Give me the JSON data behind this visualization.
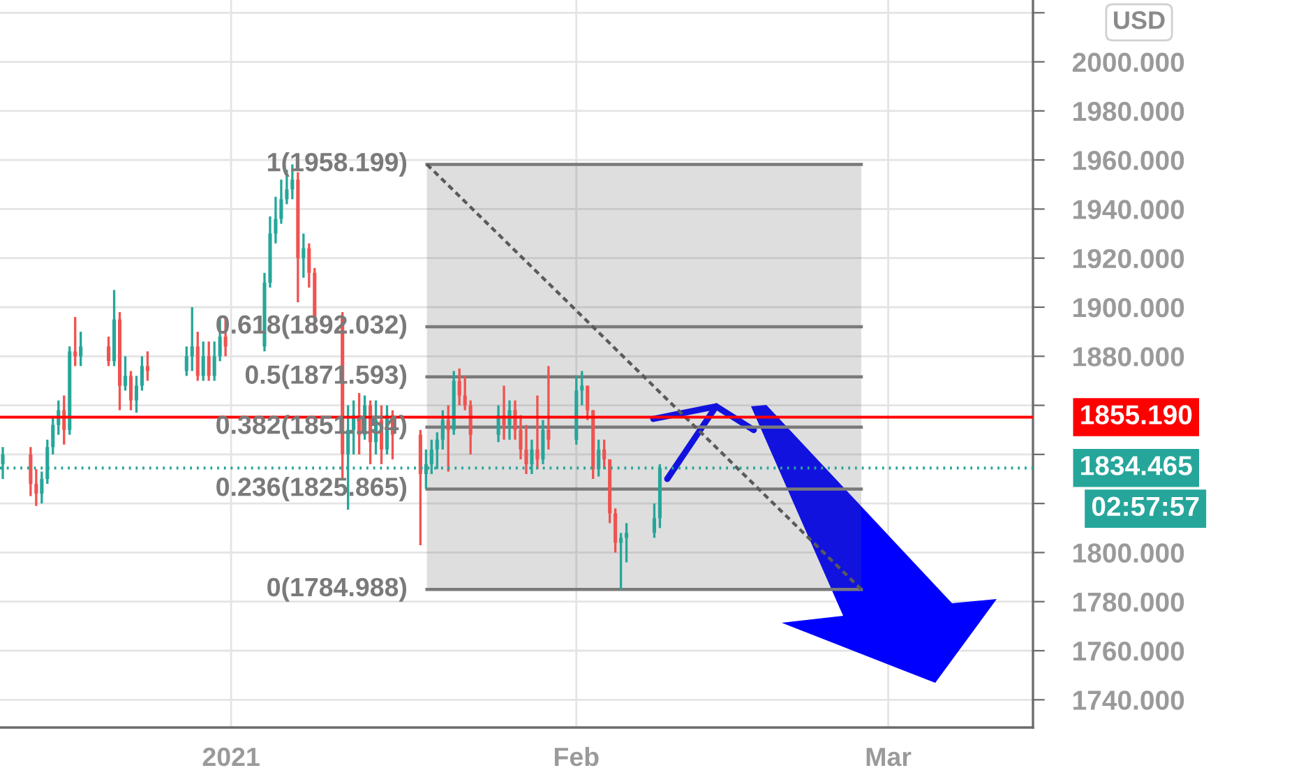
{
  "chart_data": {
    "type": "candlestick",
    "x": [
      "2020-12-11T12:00",
      "2020-12-14T00:00",
      "2020-12-14T12:00",
      "2020-12-15T00:00",
      "2020-12-15T12:00",
      "2020-12-16T00:00",
      "2020-12-16T12:00",
      "2020-12-17T00:00",
      "2020-12-17T12:00",
      "2020-12-18T00:00",
      "2020-12-18T12:00",
      "2020-12-21T00:00",
      "2020-12-21T12:00",
      "2020-12-22T00:00",
      "2020-12-22T12:00",
      "2020-12-23T00:00",
      "2020-12-23T12:00",
      "2020-12-24T00:00",
      "2020-12-24T12:00",
      "2020-12-28T00:00",
      "2020-12-28T12:00",
      "2020-12-29T00:00",
      "2020-12-29T12:00",
      "2020-12-30T00:00",
      "2020-12-30T12:00",
      "2020-12-31T00:00",
      "2020-12-31T12:00",
      "2021-01-04T00:00",
      "2021-01-04T12:00",
      "2021-01-05T00:00",
      "2021-01-05T12:00",
      "2021-01-06T00:00",
      "2021-01-06T12:00",
      "2021-01-07T00:00",
      "2021-01-07T12:00",
      "2021-01-08T00:00",
      "2021-01-08T12:00",
      "2021-01-11T00:00",
      "2021-01-11T12:00",
      "2021-01-12T00:00",
      "2021-01-12T12:00",
      "2021-01-13T00:00",
      "2021-01-13T12:00",
      "2021-01-14T00:00",
      "2021-01-14T12:00",
      "2021-01-15T00:00",
      "2021-01-15T12:00",
      "2021-01-18T00:00",
      "2021-01-18T12:00",
      "2021-01-19T00:00",
      "2021-01-19T12:00",
      "2021-01-20T00:00",
      "2021-01-20T12:00",
      "2021-01-21T00:00",
      "2021-01-21T12:00",
      "2021-01-22T00:00",
      "2021-01-22T12:00",
      "2021-01-25T00:00",
      "2021-01-25T12:00",
      "2021-01-26T00:00",
      "2021-01-26T12:00",
      "2021-01-27T00:00",
      "2021-01-27T12:00",
      "2021-01-28T00:00",
      "2021-01-28T12:00",
      "2021-01-29T00:00",
      "2021-01-29T12:00",
      "2021-02-01T00:00",
      "2021-02-01T12:00",
      "2021-02-02T00:00",
      "2021-02-02T12:00",
      "2021-02-03T00:00",
      "2021-02-03T12:00",
      "2021-02-04T00:00",
      "2021-02-04T12:00",
      "2021-02-05T00:00",
      "2021-02-05T12:00",
      "2021-02-08T00:00",
      "2021-02-08T12:00"
    ],
    "ohlc": [
      [
        1836,
        1843,
        1830,
        1840
      ],
      [
        1840,
        1843,
        1823,
        1828
      ],
      [
        1828,
        1834,
        1819,
        1824
      ],
      [
        1824,
        1833,
        1820,
        1830
      ],
      [
        1830,
        1846,
        1828,
        1843
      ],
      [
        1843,
        1855,
        1840,
        1852
      ],
      [
        1852,
        1862,
        1848,
        1858
      ],
      [
        1858,
        1864,
        1844,
        1850
      ],
      [
        1850,
        1884,
        1848,
        1882
      ],
      [
        1882,
        1896,
        1876,
        1880
      ],
      [
        1880,
        1890,
        1876,
        1884
      ],
      [
        1884,
        1888,
        1876,
        1878
      ],
      [
        1878,
        1907,
        1876,
        1895
      ],
      [
        1895,
        1898,
        1858,
        1868
      ],
      [
        1868,
        1880,
        1866,
        1872
      ],
      [
        1872,
        1874,
        1858,
        1862
      ],
      [
        1862,
        1872,
        1857,
        1868
      ],
      [
        1868,
        1880,
        1866,
        1876
      ],
      [
        1876,
        1882,
        1870,
        1874
      ],
      [
        1874,
        1884,
        1872,
        1880
      ],
      [
        1880,
        1900,
        1874,
        1884
      ],
      [
        1884,
        1890,
        1870,
        1872
      ],
      [
        1872,
        1886,
        1870,
        1880
      ],
      [
        1880,
        1886,
        1870,
        1872
      ],
      [
        1872,
        1886,
        1870,
        1880
      ],
      [
        1880,
        1895,
        1878,
        1888
      ],
      [
        1888,
        1896,
        1880,
        1884
      ],
      [
        1884,
        1914,
        1882,
        1910
      ],
      [
        1910,
        1937,
        1908,
        1930
      ],
      [
        1930,
        1945,
        1926,
        1936
      ],
      [
        1936,
        1952,
        1934,
        1944
      ],
      [
        1944,
        1956,
        1942,
        1948
      ],
      [
        1948,
        1958.2,
        1944,
        1952
      ],
      [
        1952,
        1955,
        1902,
        1920
      ],
      [
        1920,
        1930,
        1912,
        1924
      ],
      [
        1924,
        1926,
        1908,
        1914
      ],
      [
        1914,
        1916,
        1890,
        1896
      ],
      [
        1896,
        1898,
        1830,
        1840
      ],
      [
        1840,
        1860,
        1817.5,
        1850
      ],
      [
        1850,
        1862,
        1840,
        1856
      ],
      [
        1856,
        1865,
        1840,
        1848
      ],
      [
        1848,
        1864,
        1846,
        1860
      ],
      [
        1860,
        1862,
        1836,
        1845
      ],
      [
        1845,
        1862,
        1840,
        1854
      ],
      [
        1854,
        1860,
        1836,
        1842
      ],
      [
        1842,
        1860,
        1840,
        1856
      ],
      [
        1856,
        1858,
        1838,
        1848
      ],
      [
        1848,
        1850,
        1803,
        1832
      ],
      [
        1832,
        1842,
        1826,
        1836
      ],
      [
        1836,
        1846,
        1832,
        1842
      ],
      [
        1842,
        1849,
        1834,
        1846
      ],
      [
        1846,
        1858,
        1842,
        1854
      ],
      [
        1854,
        1860,
        1833,
        1850
      ],
      [
        1850,
        1874,
        1848,
        1870
      ],
      [
        1870,
        1875,
        1860,
        1864
      ],
      [
        1864,
        1872,
        1858,
        1860
      ],
      [
        1860,
        1862,
        1840,
        1848
      ],
      [
        1848,
        1860,
        1845,
        1856
      ],
      [
        1856,
        1868,
        1846,
        1852
      ],
      [
        1852,
        1862,
        1846,
        1858
      ],
      [
        1858,
        1862,
        1846,
        1850
      ],
      [
        1850,
        1856,
        1838,
        1842
      ],
      [
        1842,
        1852,
        1832,
        1836
      ],
      [
        1836,
        1846,
        1832,
        1842
      ],
      [
        1842,
        1864,
        1834,
        1838
      ],
      [
        1838,
        1854,
        1836,
        1850
      ],
      [
        1850,
        1876,
        1842,
        1846
      ],
      [
        1846,
        1872,
        1844,
        1866
      ],
      [
        1866,
        1874,
        1860,
        1868
      ],
      [
        1868,
        1868,
        1854,
        1858
      ],
      [
        1858,
        1858,
        1830,
        1834
      ],
      [
        1834,
        1846,
        1831,
        1842
      ],
      [
        1842,
        1846,
        1834,
        1838
      ],
      [
        1838,
        1838,
        1812,
        1816
      ],
      [
        1816,
        1818,
        1800,
        1804
      ],
      [
        1804,
        1808,
        1785,
        1806
      ],
      [
        1806,
        1812,
        1796,
        1808
      ],
      [
        1808,
        1820,
        1806,
        1814
      ],
      [
        1814,
        1836,
        1810,
        1834.465
      ]
    ],
    "colors": [
      "#26a69a",
      "#ef5350",
      "#ef5350",
      "#26a69a",
      "#26a69a",
      "#26a69a",
      "#26a69a",
      "#ef5350",
      "#26a69a",
      "#ef5350",
      "#26a69a",
      "#ef5350",
      "#26a69a",
      "#ef5350",
      "#26a69a",
      "#ef5350",
      "#26a69a",
      "#26a69a",
      "#ef5350",
      "#26a69a",
      "#26a69a",
      "#ef5350",
      "#26a69a",
      "#ef5350",
      "#26a69a",
      "#26a69a",
      "#ef5350",
      "#26a69a",
      "#26a69a",
      "#26a69a",
      "#26a69a",
      "#26a69a",
      "#26a69a",
      "#ef5350",
      "#26a69a",
      "#ef5350",
      "#ef5350",
      "#ef5350",
      "#26a69a",
      "#26a69a",
      "#ef5350",
      "#26a69a",
      "#ef5350",
      "#26a69a",
      "#ef5350",
      "#26a69a",
      "#ef5350",
      "#ef5350",
      "#26a69a",
      "#26a69a",
      "#26a69a",
      "#26a69a",
      "#ef5350",
      "#26a69a",
      "#ef5350",
      "#ef5350",
      "#ef5350",
      "#26a69a",
      "#ef5350",
      "#26a69a",
      "#ef5350",
      "#ef5350",
      "#ef5350",
      "#26a69a",
      "#ef5350",
      "#26a69a",
      "#ef5350",
      "#26a69a",
      "#26a69a",
      "#ef5350",
      "#ef5350",
      "#26a69a",
      "#ef5350",
      "#ef5350",
      "#ef5350",
      "#26a69a",
      "#26a69a",
      "#26a69a",
      "#26a69a"
    ],
    "series": [
      {
        "type": "line",
        "name": "1(1958.199)",
        "color": "#7a7a7a",
        "x": [
          "2021-01-18T14:00",
          "2021-02-26T14:00"
        ],
        "values": [
          1958.199,
          1958.199
        ]
      },
      {
        "type": "line",
        "name": "0.618(1892.032)",
        "color": "#7a7a7a",
        "x": [
          "2021-01-18T14:00",
          "2021-02-26T14:00"
        ],
        "values": [
          1892.032,
          1892.032
        ]
      },
      {
        "type": "line",
        "name": "0.5(1871.593)",
        "color": "#7a7a7a",
        "x": [
          "2021-01-18T14:00",
          "2021-02-26T14:00"
        ],
        "values": [
          1871.593,
          1871.593
        ]
      },
      {
        "type": "line",
        "name": "0.382(1851.154)",
        "color": "#7a7a7a",
        "x": [
          "2021-01-18T14:00",
          "2021-02-26T14:00"
        ],
        "values": [
          1851.154,
          1851.154
        ]
      },
      {
        "type": "line",
        "name": "0.236(1825.865)",
        "color": "#7a7a7a",
        "x": [
          "2021-01-18T14:00",
          "2021-02-26T14:00"
        ],
        "values": [
          1825.865,
          1825.865
        ]
      },
      {
        "type": "line",
        "name": "0(1784.988)",
        "color": "#7a7a7a",
        "x": [
          "2021-01-18T14:00",
          "2021-02-26T14:00"
        ],
        "values": [
          1784.988,
          1784.988
        ]
      },
      {
        "type": "line",
        "color": "#5a5a5a",
        "line_style": "dashed",
        "x": [
          "2021-01-18T14:00",
          "2021-02-26T14:00"
        ],
        "values": [
          1958.199,
          1784.988
        ],
        "lower": [
          1784.988,
          1784.988
        ],
        "upper": [
          1958.199,
          1958.199
        ]
      }
    ],
    "ref_lines": [
      {
        "axis": "y",
        "value": 1855.19,
        "label": "1855.190",
        "color": "#ff0000",
        "line_style": "solid"
      },
      {
        "axis": "y",
        "value": 1834.465,
        "label": "1834.465",
        "color": "#26a69a",
        "line_style": "dotted"
      }
    ],
    "annotations": [
      "USD",
      "02:57:57"
    ],
    "xlim": [
      "2020-12-11T06:00",
      "2021-03-14T00:00"
    ],
    "xticks": [
      {
        "value": "2021-01-01",
        "label": "2021"
      },
      {
        "value": "2021-02-01",
        "label": "Feb"
      },
      {
        "value": "2021-03-01",
        "label": "Mar"
      }
    ],
    "ylim": [
      1728.7,
      2025.2
    ],
    "yticks": [
      {
        "value": 1740,
        "label": "1740.000"
      },
      {
        "value": 1760,
        "label": "1760.000"
      },
      {
        "value": 1780,
        "label": "1780.000"
      },
      {
        "value": 1800,
        "label": "1800.000"
      },
      {
        "value": 1820,
        "label": null
      },
      {
        "value": 1840,
        "label": null
      },
      {
        "value": 1860,
        "label": null
      },
      {
        "value": 1880,
        "label": "1880.000"
      },
      {
        "value": 1900,
        "label": "1900.000"
      },
      {
        "value": 1920,
        "label": "1920.000"
      },
      {
        "value": 1940,
        "label": "1940.000"
      },
      {
        "value": 1960,
        "label": "1960.000"
      },
      {
        "value": 1980,
        "label": "1980.000"
      },
      {
        "value": 2000,
        "label": "2000.000"
      },
      {
        "value": 2020,
        "label": null
      }
    ],
    "grid": true
  }
}
